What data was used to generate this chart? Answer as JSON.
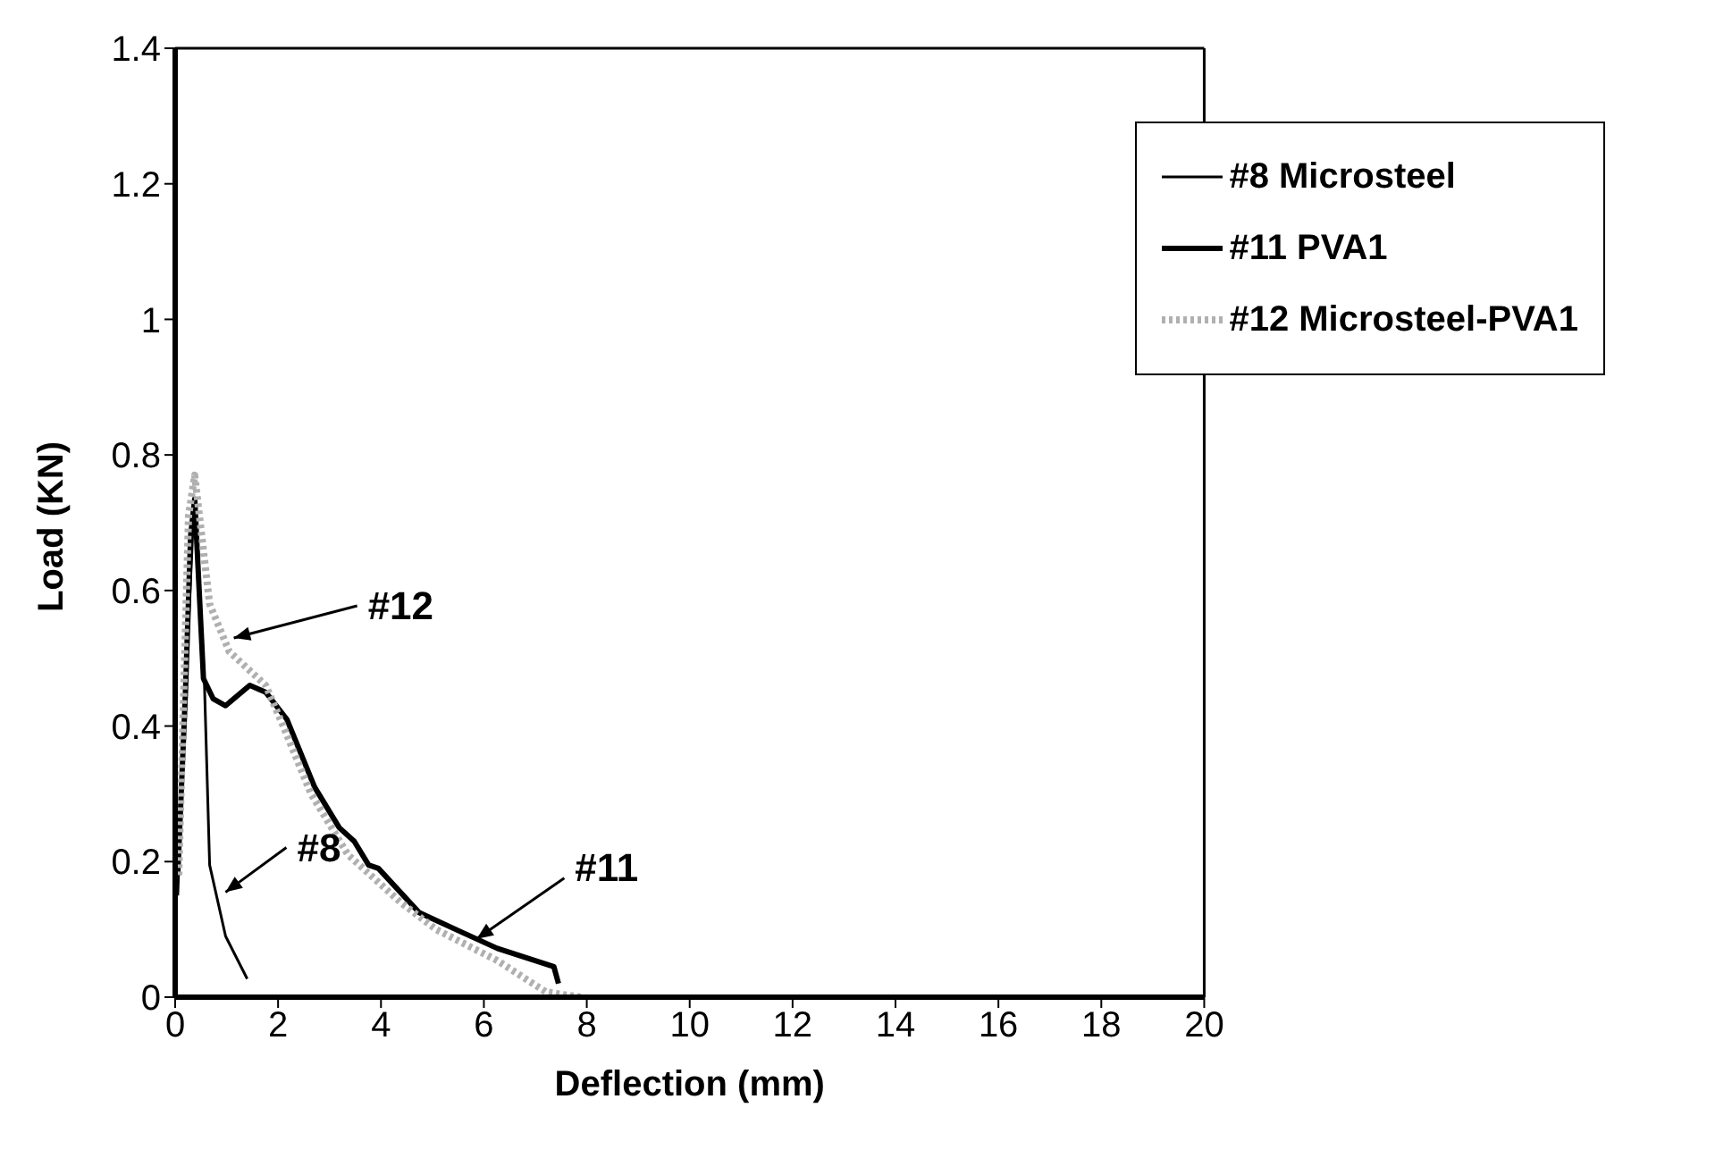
{
  "chart_data": {
    "type": "line",
    "xlabel": "Deflection (mm)",
    "ylabel": "Load (KN)",
    "xlim": [
      0,
      20
    ],
    "xticks": [
      0,
      2,
      4,
      6,
      8,
      10,
      12,
      14,
      16,
      18,
      20
    ],
    "ylim": [
      0,
      1.4
    ],
    "yticks": [
      0,
      0.2,
      0.4,
      0.6,
      0.8,
      1,
      1.2,
      1.4
    ],
    "grid": false,
    "legend": "top right",
    "marker": "none",
    "series": [
      {
        "name": "#8 Microsteel",
        "color": "#000000",
        "line_style": "solid",
        "x": [
          0.05,
          0.2,
          0.35,
          0.4,
          0.57,
          0.67,
          0.98,
          1.4
        ],
        "values": [
          0.15,
          0.45,
          0.7,
          0.72,
          0.46,
          0.195,
          0.09,
          0.027
        ]
      },
      {
        "name": "#11 PVA1",
        "color": "#000000",
        "line_style": "solid",
        "x": [
          0.05,
          0.2,
          0.3,
          0.38,
          0.55,
          0.74,
          0.98,
          1.45,
          1.76,
          2.17,
          2.71,
          3.19,
          3.48,
          3.76,
          3.95,
          4.74,
          5.45,
          6.26,
          7.36,
          7.45
        ],
        "values": [
          0.18,
          0.45,
          0.68,
          0.735,
          0.47,
          0.44,
          0.43,
          0.46,
          0.45,
          0.41,
          0.31,
          0.25,
          0.23,
          0.195,
          0.19,
          0.125,
          0.1,
          0.072,
          0.045,
          0.02
        ]
      },
      {
        "name": "#12 Microsteel-PVA1",
        "color": "#b0b0b0",
        "line_style": "dotted",
        "x": [
          0.07,
          0.26,
          0.38,
          0.67,
          1.05,
          1.76,
          2.1,
          2.64,
          3.36,
          4.38,
          5.07,
          6.26,
          7.2,
          7.6,
          7.9
        ],
        "values": [
          0.18,
          0.71,
          0.77,
          0.58,
          0.51,
          0.46,
          0.4,
          0.3,
          0.21,
          0.14,
          0.1,
          0.054,
          0.008,
          0.003,
          0
        ]
      }
    ],
    "annotations": [
      {
        "text": "#12",
        "x": 1.14,
        "y": 0.53
      },
      {
        "text": "#8",
        "x": 0.98,
        "y": 0.155
      },
      {
        "text": "#11",
        "x": 5.86,
        "y": 0.086
      }
    ]
  }
}
